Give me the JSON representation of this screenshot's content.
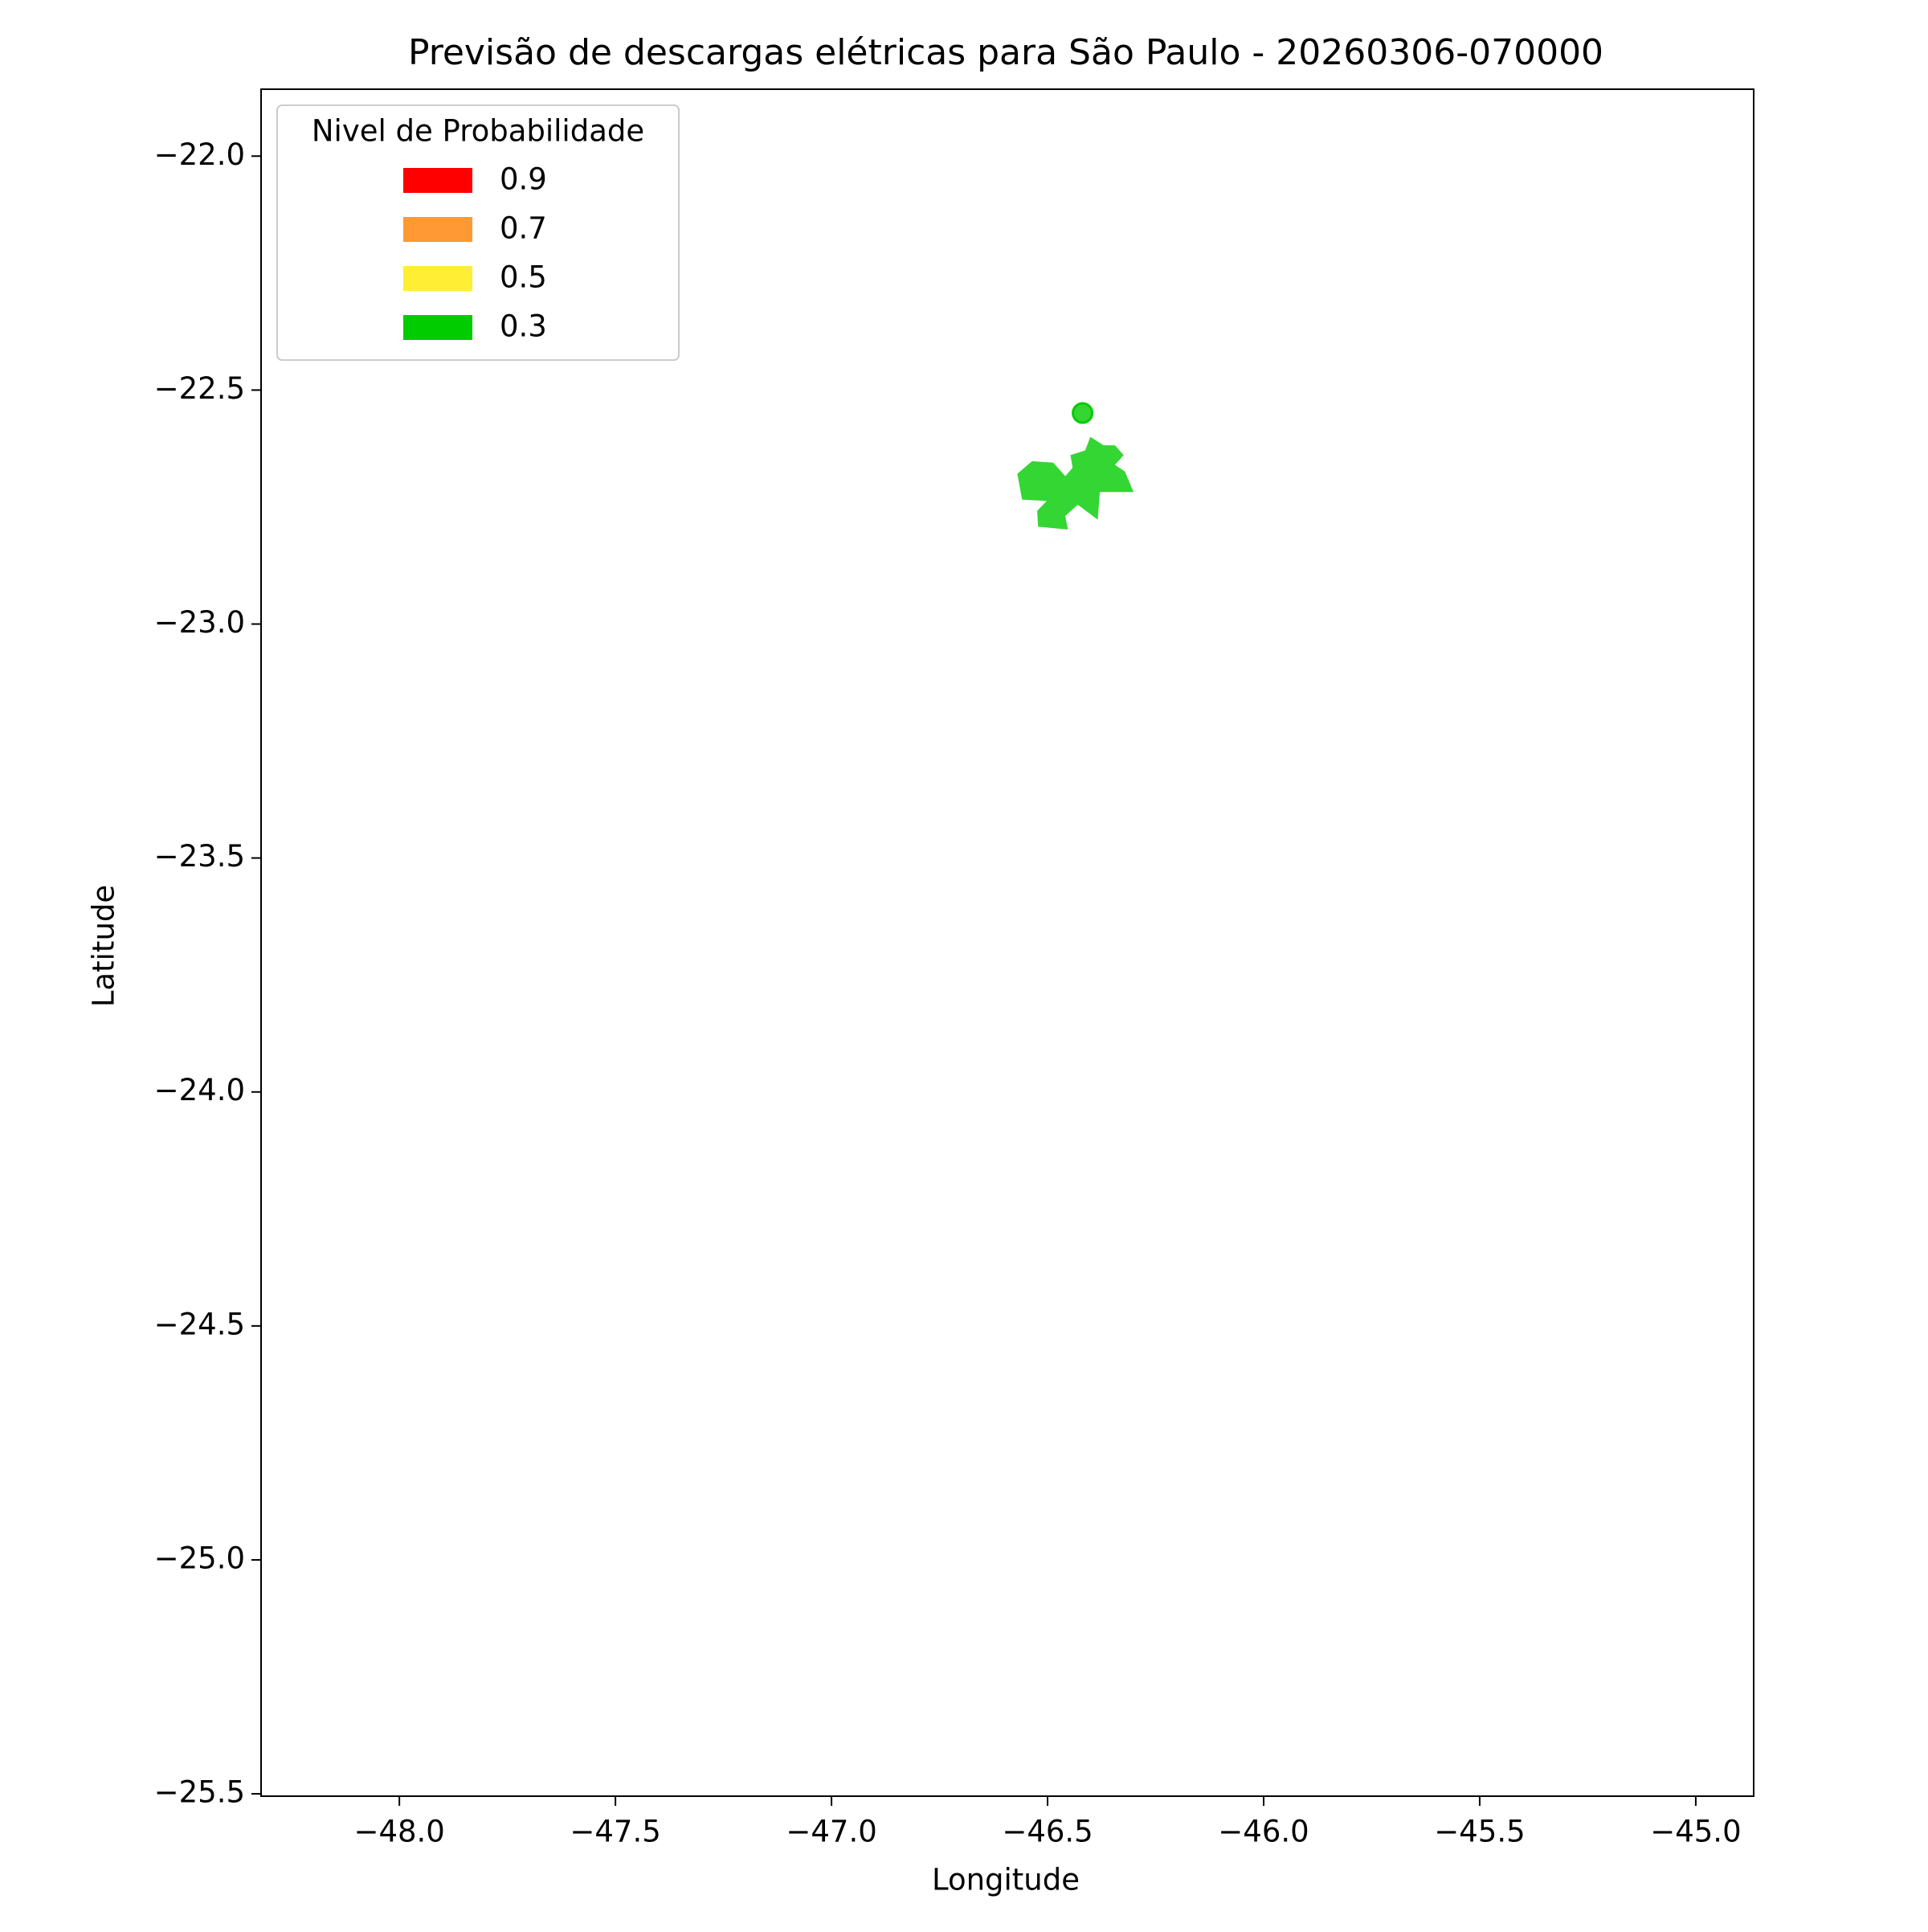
{
  "chart_data": {
    "type": "polygon",
    "title": "Previsão de descargas elétricas para São Paulo - 20260306-070000",
    "x_label": "Longitude",
    "y_label": "Latitude",
    "legend_title": "Nivel de Probabilidade",
    "legend": "upper left",
    "xlim": [
      -48.32,
      -44.866
    ],
    "ylim": [
      -25.505,
      -21.857
    ],
    "xticks": [
      {
        "value": -48,
        "label": "−48.0"
      },
      {
        "value": -47.5,
        "label": "−47.5"
      },
      {
        "value": -47,
        "label": "−47.0"
      },
      {
        "value": -46.5,
        "label": "−46.5"
      },
      {
        "value": -46,
        "label": "−46.0"
      },
      {
        "value": -45.5,
        "label": "−45.5"
      },
      {
        "value": -45,
        "label": "−45.0"
      }
    ],
    "yticks": [
      {
        "value": -22,
        "label": "−22.0"
      },
      {
        "value": -22.5,
        "label": "−22.5"
      },
      {
        "value": -23,
        "label": "−23.0"
      },
      {
        "value": -23.5,
        "label": "−23.5"
      },
      {
        "value": -24,
        "label": "−24.0"
      },
      {
        "value": -24.5,
        "label": "−24.5"
      },
      {
        "value": -25,
        "label": "−25.0"
      },
      {
        "value": -25.5,
        "label": "−25.5"
      }
    ],
    "series": [
      {
        "name": "0.9",
        "color": "#ff0000",
        "polygons": [],
        "points": {
          "x": [],
          "y": []
        }
      },
      {
        "name": "0.7",
        "color": "#ff9933",
        "polygons": [],
        "points": {
          "x": [],
          "y": []
        }
      },
      {
        "name": "0.5",
        "color": "#ffee33",
        "polygons": [],
        "points": {
          "x": [],
          "y": []
        }
      },
      {
        "name": "0.3",
        "color": "#00cc00",
        "polygons": [
          {
            "x": [
              -46.57,
              -46.536,
              -46.487,
              -46.459,
              -46.442,
              -46.447,
              -46.413,
              -46.401,
              -46.37,
              -46.344,
              -46.324,
              -46.344,
              -46.321,
              -46.301,
              -46.379,
              -46.384,
              -46.43,
              -46.459,
              -46.453,
              -46.522,
              -46.524,
              -46.502,
              -46.559
            ],
            "y": [
              -22.679,
              -22.652,
              -22.655,
              -22.684,
              -22.666,
              -22.639,
              -22.629,
              -22.6,
              -22.618,
              -22.618,
              -22.639,
              -22.66,
              -22.674,
              -22.718,
              -22.718,
              -22.777,
              -22.745,
              -22.769,
              -22.798,
              -22.792,
              -22.758,
              -22.737,
              -22.734
            ]
          }
        ],
        "points": {
          "x": [
            -46.419
          ],
          "y": [
            -22.549
          ]
        }
      }
    ]
  }
}
